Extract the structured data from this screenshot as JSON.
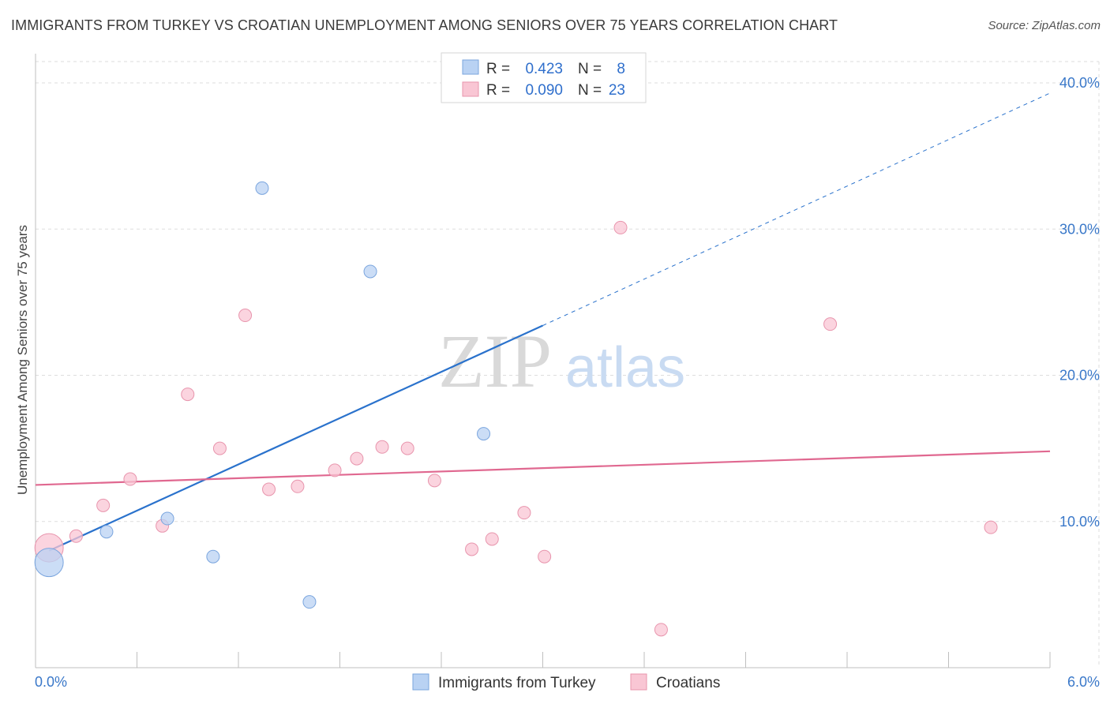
{
  "header": {
    "title": "IMMIGRANTS FROM TURKEY VS CROATIAN UNEMPLOYMENT AMONG SENIORS OVER 75 YEARS CORRELATION CHART",
    "source": "Source: ZipAtlas.com"
  },
  "watermark": {
    "zip": "ZIP",
    "atlas": "atlas"
  },
  "legend_box": {
    "row1": {
      "r_label": "R =",
      "r_value": "0.423",
      "n_label": "N =",
      "n_value": "8"
    },
    "row2": {
      "r_label": "R =",
      "r_value": "0.090",
      "n_label": "N =",
      "n_value": "23"
    }
  },
  "colors": {
    "turkey_fill": "#b9d2f3",
    "turkey_stroke": "#7aa5de",
    "turkey_line": "#2a72cc",
    "croatian_fill": "#f9c6d4",
    "croatian_stroke": "#e895ad",
    "croatian_line": "#e06890",
    "grid": "#dddddd",
    "tick_label": "#3a78c9"
  },
  "chart_data": {
    "type": "scatter",
    "title": "IMMIGRANTS FROM TURKEY VS CROATIAN UNEMPLOYMENT AMONG SENIORS OVER 75 YEARS CORRELATION CHART",
    "xlabel": "",
    "ylabel": "Unemployment Among Seniors over 75 years",
    "xlim": [
      0,
      6
    ],
    "ylim": [
      0,
      40
    ],
    "x_tick_labels": [
      "0.0%",
      "6.0%"
    ],
    "y_ticks": [
      10,
      20,
      30,
      40
    ],
    "y_tick_labels": [
      "10.0%",
      "20.0%",
      "30.0%",
      "40.0%"
    ],
    "grid": true,
    "legend_position": "top-center",
    "series": [
      {
        "name": "Immigrants from Turkey",
        "r": 0.423,
        "n": 8,
        "points": [
          {
            "x": 0.08,
            "y": 7.2,
            "size": "large"
          },
          {
            "x": 0.42,
            "y": 9.3
          },
          {
            "x": 0.78,
            "y": 10.2
          },
          {
            "x": 1.05,
            "y": 7.6
          },
          {
            "x": 1.34,
            "y": 32.8
          },
          {
            "x": 1.62,
            "y": 4.5
          },
          {
            "x": 1.98,
            "y": 27.1
          },
          {
            "x": 2.65,
            "y": 16.0
          }
        ],
        "trend": {
          "x0": 0.08,
          "y0": 8.0,
          "x1": 3.0,
          "y1": 23.4,
          "dashed_to_x": 6.0,
          "dashed_to_y": 39.3
        }
      },
      {
        "name": "Croatians",
        "r": 0.09,
        "n": 23,
        "points": [
          {
            "x": 0.08,
            "y": 8.2,
            "size": "large"
          },
          {
            "x": 0.24,
            "y": 9.0
          },
          {
            "x": 0.4,
            "y": 11.1
          },
          {
            "x": 0.56,
            "y": 12.9
          },
          {
            "x": 0.75,
            "y": 9.7
          },
          {
            "x": 0.9,
            "y": 18.7
          },
          {
            "x": 1.09,
            "y": 15.0
          },
          {
            "x": 1.24,
            "y": 24.1
          },
          {
            "x": 1.38,
            "y": 12.2
          },
          {
            "x": 1.55,
            "y": 12.4
          },
          {
            "x": 1.77,
            "y": 13.5
          },
          {
            "x": 1.9,
            "y": 14.3
          },
          {
            "x": 2.05,
            "y": 15.1
          },
          {
            "x": 2.2,
            "y": 15.0
          },
          {
            "x": 2.36,
            "y": 12.8
          },
          {
            "x": 2.58,
            "y": 8.1
          },
          {
            "x": 2.7,
            "y": 8.8
          },
          {
            "x": 2.89,
            "y": 10.6
          },
          {
            "x": 3.01,
            "y": 7.6
          },
          {
            "x": 3.46,
            "y": 30.1
          },
          {
            "x": 3.7,
            "y": 2.6
          },
          {
            "x": 4.7,
            "y": 23.5
          },
          {
            "x": 5.65,
            "y": 9.6
          }
        ],
        "trend": {
          "x0": 0.0,
          "y0": 12.5,
          "x1": 6.0,
          "y1": 14.8
        }
      }
    ]
  },
  "bottom_legend": {
    "turkey_label": "Immigrants from Turkey",
    "croatian_label": "Croatians"
  }
}
